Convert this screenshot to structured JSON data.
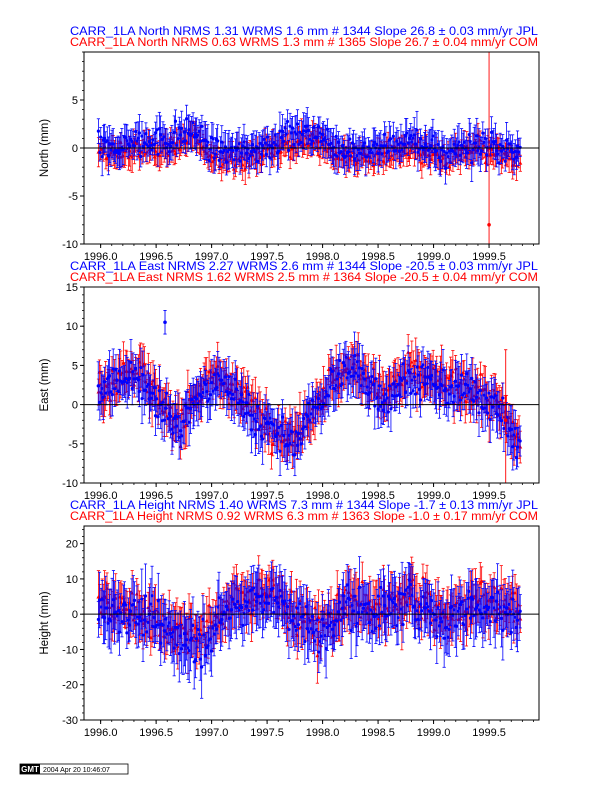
{
  "colors": {
    "jpl": "#0000ff",
    "com": "#ff0000",
    "axis": "#000000"
  },
  "footer": {
    "logo": "GMT",
    "timestamp": "2004 Apr 20 10:46:07"
  },
  "chart_data": [
    {
      "type": "scatter",
      "component": "north",
      "ylabel": "North (mm)",
      "ylim": [
        -10,
        10
      ],
      "yticks": [
        -10,
        -5,
        0,
        5
      ],
      "xlim": [
        1995.85,
        1999.95
      ],
      "xticks": [
        "1996.0",
        "1996.5",
        "1997.0",
        "1997.5",
        "1998.0",
        "1998.5",
        "1999.0",
        "1999.5"
      ],
      "titles": [
        {
          "text": "CARR_1LA North NRMS 1.31 WRMS  1.6 mm # 1344 Slope   26.8 ±  0.03 mm/yr JPL",
          "color": "#0000ff"
        },
        {
          "text": "CARR_1LA North NRMS 0.63 WRMS  1.3 mm # 1365 Slope   26.7 ±  0.04 mm/yr COM",
          "color": "#ff0000"
        }
      ],
      "series": [
        {
          "name": "JPL",
          "color": "#0000ff",
          "count": 1344,
          "wrms": 1.6,
          "trend": [
            [
              1996.0,
              -0.2
            ],
            [
              1996.3,
              0.5
            ],
            [
              1996.6,
              0.8
            ],
            [
              1996.85,
              1.8
            ],
            [
              1997.0,
              0.0
            ],
            [
              1997.3,
              -0.5
            ],
            [
              1997.6,
              1.0
            ],
            [
              1997.9,
              1.6
            ],
            [
              1998.2,
              0.0
            ],
            [
              1998.5,
              -0.3
            ],
            [
              1998.8,
              0.8
            ],
            [
              1999.1,
              -0.5
            ],
            [
              1999.4,
              0.6
            ],
            [
              1999.75,
              -0.5
            ]
          ]
        },
        {
          "name": "COM",
          "color": "#ff0000",
          "count": 1365,
          "wrms": 1.3,
          "trend": [
            [
              1996.0,
              -0.8
            ],
            [
              1996.3,
              -0.3
            ],
            [
              1996.6,
              0.0
            ],
            [
              1996.85,
              1.0
            ],
            [
              1997.0,
              -0.8
            ],
            [
              1997.3,
              -1.2
            ],
            [
              1997.6,
              0.2
            ],
            [
              1997.9,
              0.8
            ],
            [
              1998.2,
              -0.8
            ],
            [
              1998.5,
              -1.0
            ],
            [
              1998.8,
              0.0
            ],
            [
              1999.1,
              -1.2
            ],
            [
              1999.4,
              -0.2
            ],
            [
              1999.75,
              -1.2
            ]
          ]
        }
      ],
      "outliers": [
        {
          "x": 1999.5,
          "y": -8,
          "err": 18,
          "color": "#ff0000"
        }
      ]
    },
    {
      "type": "scatter",
      "component": "east",
      "ylabel": "East (mm)",
      "ylim": [
        -10,
        15
      ],
      "yticks": [
        -10,
        -5,
        0,
        5,
        10,
        15
      ],
      "xlim": [
        1995.85,
        1999.95
      ],
      "xticks": [
        "1996.0",
        "1996.5",
        "1997.0",
        "1997.5",
        "1998.0",
        "1998.5",
        "1999.0",
        "1999.5"
      ],
      "titles": [
        {
          "text": "CARR_1LA East NRMS 2.27 WRMS  2.6 mm # 1344 Slope  -20.5 ±  0.03 mm/yr JPL",
          "color": "#0000ff"
        },
        {
          "text": "CARR_1LA East NRMS 1.62 WRMS  2.5 mm # 1364 Slope  -20.5 ±  0.04 mm/yr COM",
          "color": "#ff0000"
        }
      ],
      "series": [
        {
          "name": "JPL",
          "color": "#0000ff",
          "count": 1344,
          "wrms": 2.6,
          "trend": [
            [
              1996.0,
              1.5
            ],
            [
              1996.2,
              3.5
            ],
            [
              1996.35,
              4.0
            ],
            [
              1996.5,
              0.5
            ],
            [
              1996.7,
              -3.0
            ],
            [
              1996.9,
              1.5
            ],
            [
              1997.1,
              3.0
            ],
            [
              1997.3,
              0.0
            ],
            [
              1997.55,
              -3.5
            ],
            [
              1997.75,
              -5.0
            ],
            [
              1997.9,
              -1.0
            ],
            [
              1998.1,
              3.0
            ],
            [
              1998.3,
              4.5
            ],
            [
              1998.55,
              1.0
            ],
            [
              1998.8,
              3.5
            ],
            [
              1999.1,
              2.0
            ],
            [
              1999.4,
              1.5
            ],
            [
              1999.6,
              -1.0
            ],
            [
              1999.75,
              -5.0
            ]
          ]
        },
        {
          "name": "COM",
          "color": "#ff0000",
          "count": 1364,
          "wrms": 2.5,
          "trend": [
            [
              1996.0,
              2.0
            ],
            [
              1996.2,
              4.0
            ],
            [
              1996.35,
              4.5
            ],
            [
              1996.5,
              1.0
            ],
            [
              1996.7,
              -2.5
            ],
            [
              1996.9,
              2.0
            ],
            [
              1997.1,
              3.5
            ],
            [
              1997.3,
              0.5
            ],
            [
              1997.55,
              -3.0
            ],
            [
              1997.75,
              -4.5
            ],
            [
              1997.9,
              -0.5
            ],
            [
              1998.1,
              3.5
            ],
            [
              1998.3,
              5.0
            ],
            [
              1998.55,
              1.5
            ],
            [
              1998.8,
              4.0
            ],
            [
              1999.1,
              2.5
            ],
            [
              1999.4,
              2.0
            ],
            [
              1999.6,
              -0.5
            ],
            [
              1999.75,
              -4.5
            ]
          ]
        }
      ],
      "outliers": [
        {
          "x": 1996.58,
          "y": 10.5,
          "err": 1.5,
          "color": "#0000ff"
        },
        {
          "x": 1999.65,
          "y": -2,
          "err": 9,
          "color": "#ff0000"
        }
      ]
    },
    {
      "type": "scatter",
      "component": "height",
      "ylabel": "Height (mm)",
      "ylim": [
        -30,
        25
      ],
      "yticks": [
        -30,
        -20,
        -10,
        0,
        10,
        20
      ],
      "xlim": [
        1995.85,
        1999.95
      ],
      "xticks": [
        "1996.0",
        "1996.5",
        "1997.0",
        "1997.5",
        "1998.0",
        "1998.5",
        "1999.0",
        "1999.5"
      ],
      "titles": [
        {
          "text": "CARR_1LA Height NRMS 1.40 WRMS  7.3 mm # 1344 Slope   -1.7 ±  0.13 mm/yr JPL",
          "color": "#0000ff"
        },
        {
          "text": "CARR_1LA Height NRMS 0.92 WRMS  6.3 mm # 1363 Slope   -1.0 ±  0.17 mm/yr COM",
          "color": "#ff0000"
        }
      ],
      "series": [
        {
          "name": "JPL",
          "color": "#0000ff",
          "count": 1344,
          "wrms": 7.3,
          "trend": [
            [
              1996.0,
              2.0
            ],
            [
              1996.3,
              0.0
            ],
            [
              1996.6,
              -5.0
            ],
            [
              1996.9,
              -8.0
            ],
            [
              1997.2,
              2.0
            ],
            [
              1997.5,
              6.0
            ],
            [
              1997.8,
              -2.0
            ],
            [
              1998.0,
              -6.0
            ],
            [
              1998.2,
              3.0
            ],
            [
              1998.5,
              0.0
            ],
            [
              1998.8,
              4.0
            ],
            [
              1999.1,
              -2.0
            ],
            [
              1999.4,
              3.0
            ],
            [
              1999.75,
              0.0
            ]
          ]
        },
        {
          "name": "COM",
          "color": "#ff0000",
          "count": 1363,
          "wrms": 6.3,
          "trend": [
            [
              1996.0,
              3.0
            ],
            [
              1996.3,
              1.0
            ],
            [
              1996.6,
              -3.0
            ],
            [
              1996.9,
              -6.0
            ],
            [
              1997.2,
              3.0
            ],
            [
              1997.5,
              7.0
            ],
            [
              1997.8,
              -1.0
            ],
            [
              1998.0,
              -5.0
            ],
            [
              1998.2,
              4.0
            ],
            [
              1998.5,
              1.0
            ],
            [
              1998.8,
              5.0
            ],
            [
              1999.1,
              -1.0
            ],
            [
              1999.4,
              4.0
            ],
            [
              1999.75,
              1.0
            ]
          ]
        }
      ],
      "outliers": []
    }
  ]
}
